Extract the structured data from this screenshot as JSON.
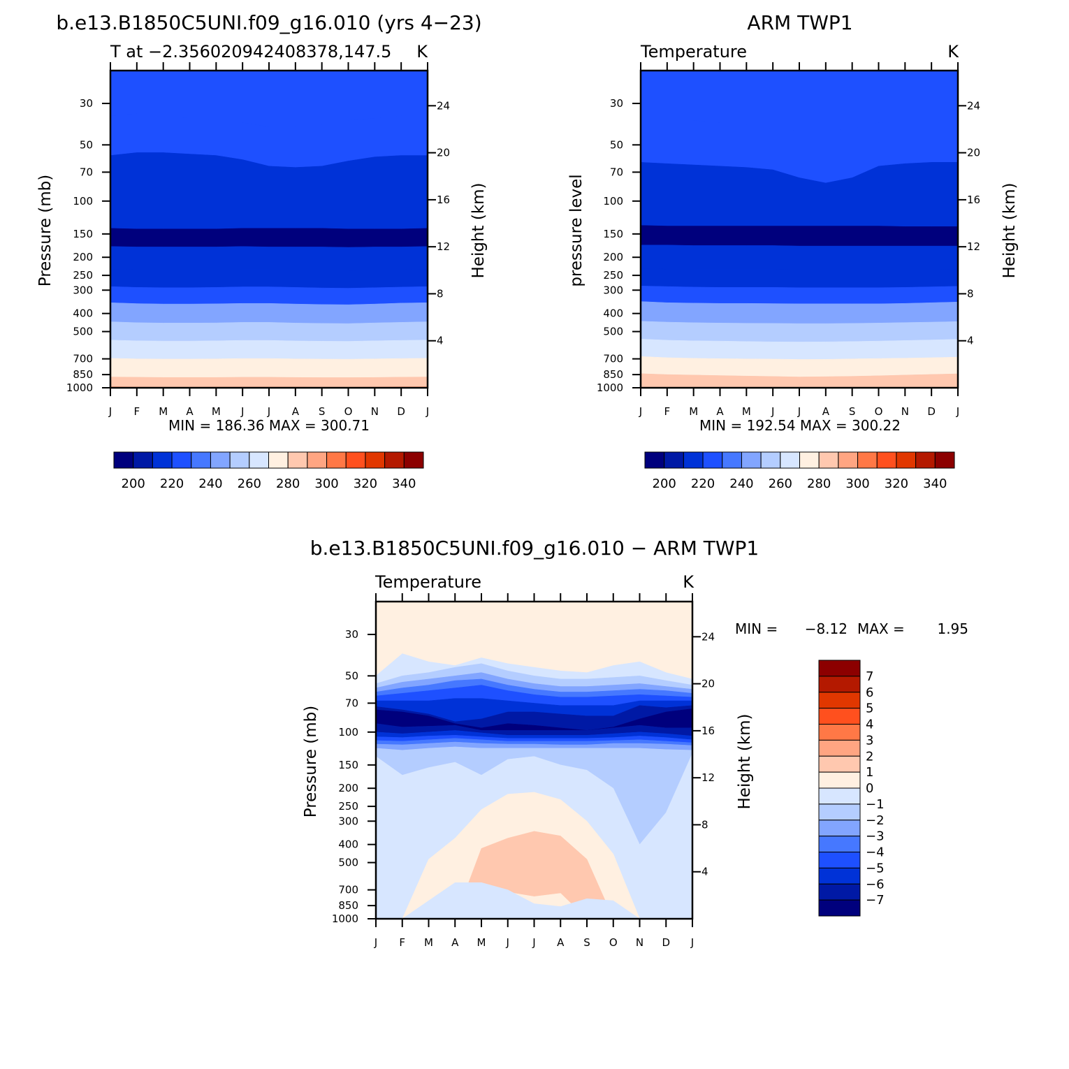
{
  "palette": [
    "#00007d",
    "#0019a5",
    "#0032d7",
    "#1e50ff",
    "#4678ff",
    "#82a5ff",
    "#b4cdff",
    "#d7e6ff",
    "#fff0e1",
    "#ffc8af",
    "#ffa582",
    "#ff7846",
    "#ff501e",
    "#e13700",
    "#b41900",
    "#8c0000"
  ],
  "chart_data": [
    {
      "type": "heatmap",
      "panel": "model",
      "title": "b.e13.B1850C5UNI.f09_g16.010 (yrs 4−23)",
      "left_label": "T at −2.356020942408378,147.5",
      "units": "K",
      "xlabel": "",
      "ylabel": "Pressure (mb)",
      "ylabel_right": "Height (km)",
      "x_ticks": [
        "J",
        "F",
        "M",
        "A",
        "M",
        "J",
        "J",
        "A",
        "S",
        "O",
        "N",
        "D",
        "J"
      ],
      "y_ticks": [
        30,
        50,
        70,
        100,
        150,
        200,
        250,
        300,
        400,
        500,
        700,
        850,
        1000
      ],
      "y_right_ticks": [
        4,
        8,
        12,
        16,
        20,
        24
      ],
      "ylim": [
        1000,
        20
      ],
      "stats": "MIN = 186.36 MAX = 300.71",
      "colorbar_labels": [
        "200",
        "220",
        "240",
        "260",
        "280",
        "300",
        "320",
        "340"
      ],
      "colorbar_levels": [
        195,
        200,
        205,
        210,
        215,
        220,
        225,
        230,
        235,
        240,
        245,
        250,
        255,
        260,
        265,
        270,
        275,
        280,
        285,
        290,
        295,
        300,
        305,
        310,
        315,
        320,
        325,
        330,
        335,
        340,
        345
      ],
      "boundaries": [
        {
          "level": 225,
          "p": [
            35,
            34,
            35,
            36,
            37,
            38,
            40,
            40,
            39,
            37,
            36,
            35,
            35
          ]
        },
        {
          "level": 215,
          "p": [
            57,
            55,
            55,
            56,
            57,
            60,
            65,
            66,
            65,
            61,
            58,
            57,
            57
          ]
        },
        {
          "level": 205,
          "p": [
            140,
            141,
            141,
            141,
            141,
            140,
            140,
            140,
            140,
            141,
            141,
            141,
            140
          ]
        },
        {
          "level": 215,
          "p": [
            175,
            176,
            176,
            176,
            176,
            175,
            176,
            176,
            176,
            177,
            176,
            176,
            175
          ]
        },
        {
          "level": 225,
          "p": [
            232,
            234,
            235,
            235,
            234,
            233,
            233,
            234,
            235,
            236,
            235,
            234,
            232
          ]
        },
        {
          "level": 235,
          "p": [
            287,
            290,
            291,
            291,
            290,
            288,
            288,
            290,
            292,
            293,
            291,
            289,
            287
          ]
        },
        {
          "level": 250,
          "p": [
            350,
            354,
            356,
            356,
            355,
            353,
            353,
            356,
            358,
            359,
            356,
            352,
            350
          ]
        },
        {
          "level": 265,
          "p": [
            443,
            448,
            450,
            450,
            449,
            446,
            446,
            450,
            452,
            453,
            449,
            446,
            443
          ]
        },
        {
          "level": 275,
          "p": [
            555,
            560,
            562,
            562,
            560,
            557,
            557,
            561,
            563,
            564,
            560,
            557,
            555
          ]
        },
        {
          "level": 285,
          "p": [
            695,
            700,
            702,
            702,
            700,
            697,
            697,
            700,
            702,
            703,
            700,
            697,
            695
          ]
        },
        {
          "level": 295,
          "p": [
            875,
            878,
            880,
            880,
            880,
            878,
            878,
            880,
            882,
            882,
            880,
            877,
            875
          ]
        },
        {
          "level": 305,
          "p": [
            985,
            990,
            992,
            992,
            990,
            989,
            989,
            990,
            992,
            993,
            990,
            986,
            985
          ]
        }
      ],
      "layers": [
        {
          "level": 222.5
        },
        {
          "level": 217.5
        },
        {
          "level": 197.5
        },
        {
          "level": 212.5
        },
        {
          "level": 217.5
        },
        {
          "level": 227.5
        },
        {
          "level": 242.5
        },
        {
          "level": 257.5
        },
        {
          "level": 267.5
        },
        {
          "level": 277.5
        },
        {
          "level": 287.5
        },
        {
          "level": 297.5
        },
        {
          "level": 302.5
        }
      ]
    },
    {
      "type": "heatmap",
      "panel": "obs",
      "title": "ARM TWP1",
      "left_label": "Temperature",
      "units": "K",
      "xlabel": "",
      "ylabel": "pressure level",
      "ylabel_right": "Height (km)",
      "x_ticks": [
        "J",
        "F",
        "M",
        "A",
        "M",
        "J",
        "J",
        "A",
        "S",
        "O",
        "N",
        "D",
        "J"
      ],
      "y_ticks": [
        30,
        50,
        70,
        100,
        150,
        200,
        250,
        300,
        400,
        500,
        700,
        850,
        1000
      ],
      "y_right_ticks": [
        4,
        8,
        12,
        16,
        20,
        24
      ],
      "ylim": [
        1000,
        20
      ],
      "stats": "MIN = 192.54 MAX = 300.22",
      "colorbar_labels": [
        "200",
        "220",
        "240",
        "260",
        "280",
        "300",
        "320",
        "340"
      ],
      "colorbar_levels": [
        195,
        200,
        205,
        210,
        215,
        220,
        225,
        230,
        235,
        240,
        245,
        250,
        255,
        260,
        265,
        270,
        275,
        280,
        285,
        290,
        295,
        300,
        305,
        310,
        315,
        320,
        325,
        330,
        335,
        340,
        345
      ],
      "boundaries": [
        {
          "level": 225,
          "p": [
            35,
            36,
            37,
            38,
            39,
            41,
            42,
            42,
            41,
            38,
            37,
            36,
            35
          ]
        },
        {
          "level": 215,
          "p": [
            62,
            63,
            64,
            65,
            66,
            68,
            75,
            80,
            75,
            65,
            63,
            62,
            62
          ]
        },
        {
          "level": 205,
          "p": [
            135,
            136,
            136,
            136,
            136,
            136,
            136,
            136,
            136,
            136,
            137,
            137,
            137
          ]
        },
        {
          "level": 215,
          "p": [
            172,
            172,
            173,
            173,
            173,
            173,
            174,
            174,
            174,
            174,
            174,
            174,
            174
          ]
        },
        {
          "level": 225,
          "p": [
            230,
            232,
            233,
            233,
            233,
            233,
            234,
            234,
            235,
            235,
            235,
            234,
            233
          ]
        },
        {
          "level": 235,
          "p": [
            285,
            287,
            289,
            290,
            290,
            290,
            291,
            291,
            291,
            291,
            290,
            288,
            286
          ]
        },
        {
          "level": 250,
          "p": [
            345,
            350,
            352,
            353,
            353,
            354,
            355,
            355,
            355,
            355,
            353,
            350,
            347
          ]
        },
        {
          "level": 265,
          "p": [
            440,
            445,
            448,
            450,
            451,
            452,
            453,
            453,
            452,
            450,
            447,
            445,
            442
          ]
        },
        {
          "level": 275,
          "p": [
            548,
            556,
            560,
            562,
            565,
            567,
            568,
            567,
            565,
            562,
            558,
            554,
            550
          ]
        },
        {
          "level": 285,
          "p": [
            680,
            690,
            695,
            698,
            700,
            702,
            705,
            704,
            700,
            697,
            694,
            690,
            685
          ]
        },
        {
          "level": 295,
          "p": [
            840,
            850,
            855,
            860,
            865,
            870,
            875,
            872,
            868,
            862,
            855,
            848,
            842
          ]
        }
      ],
      "layers": [
        {
          "level": 222.5
        },
        {
          "level": 217.5
        },
        {
          "level": 197.5
        },
        {
          "level": 212.5
        },
        {
          "level": 217.5
        },
        {
          "level": 227.5
        },
        {
          "level": 242.5
        },
        {
          "level": 257.5
        },
        {
          "level": 267.5
        },
        {
          "level": 277.5
        },
        {
          "level": 287.5
        },
        {
          "level": 292.5
        }
      ]
    },
    {
      "type": "heatmap",
      "panel": "diff",
      "title": "b.e13.B1850C5UNI.f09_g16.010 − ARM TWP1",
      "left_label": "Temperature",
      "units": "K",
      "xlabel": "",
      "ylabel": "Pressure (mb)",
      "ylabel_right": "Height (km)",
      "x_ticks": [
        "J",
        "F",
        "M",
        "A",
        "M",
        "J",
        "J",
        "A",
        "S",
        "O",
        "N",
        "D",
        "J"
      ],
      "y_ticks": [
        30,
        50,
        70,
        100,
        150,
        200,
        250,
        300,
        400,
        500,
        700,
        850,
        1000
      ],
      "y_right_ticks": [
        4,
        8,
        12,
        16,
        20,
        24
      ],
      "ylim": [
        1000,
        20
      ],
      "stats_min_label": "MIN =",
      "stats_min": "−8.12",
      "stats_max_label": "MAX =",
      "stats_max": "1.95",
      "colorbar_labels": [
        "7",
        "6",
        "5",
        "4",
        "3",
        "2",
        "1",
        "0",
        "−1",
        "−2",
        "−3",
        "−4",
        "−5",
        "−6",
        "−7"
      ],
      "colorbar_levels": [
        7.5,
        6.5,
        5.5,
        4.5,
        3.5,
        2.5,
        1.5,
        0.5,
        -0.5,
        -1.5,
        -2.5,
        -3.5,
        -4.5,
        -5.5,
        -6.5,
        -7.5
      ],
      "boundaries": [
        {
          "level": 0,
          "p": [
            20,
            20,
            30,
            30,
            30,
            32,
            22,
            22,
            22,
            30,
            20,
            30,
            22
          ]
        },
        {
          "level": -1,
          "p": [
            50,
            38,
            42,
            44,
            40,
            43,
            45,
            47,
            48,
            44,
            42,
            48,
            52
          ]
        },
        {
          "level": -2,
          "p": [
            55,
            50,
            48,
            45,
            43,
            47,
            50,
            52,
            52,
            51,
            50,
            53,
            56
          ]
        },
        {
          "level": -3,
          "p": [
            58,
            54,
            52,
            50,
            48,
            52,
            55,
            57,
            57,
            56,
            55,
            57,
            59
          ]
        },
        {
          "level": -4,
          "p": [
            61,
            58,
            56,
            53,
            52,
            56,
            59,
            61,
            61,
            60,
            59,
            60,
            62
          ]
        },
        {
          "level": -5,
          "p": [
            64,
            62,
            60,
            58,
            56,
            60,
            63,
            65,
            65,
            64,
            63,
            64,
            65
          ]
        },
        {
          "level": -6,
          "p": [
            68,
            68,
            68,
            66,
            66,
            68,
            70,
            72,
            72,
            72,
            68,
            68,
            68
          ]
        },
        {
          "level": -7,
          "p": [
            73,
            76,
            80,
            88,
            85,
            78,
            78,
            80,
            82,
            82,
            72,
            74,
            72
          ]
        },
        {
          "level": -8,
          "p": [
            76,
            78,
            82,
            90,
            95,
            90,
            92,
            95,
            98,
            94,
            85,
            78,
            75
          ]
        },
        {
          "level": -7,
          "p": [
            90,
            94,
            93,
            92,
            98,
            98,
            98,
            98,
            98,
            95,
            92,
            95,
            95
          ]
        },
        {
          "level": -6,
          "p": [
            100,
            102,
            100,
            98,
            101,
            104,
            104,
            104,
            104,
            102,
            100,
            102,
            105
          ]
        },
        {
          "level": -5,
          "p": [
            106,
            107,
            105,
            104,
            106,
            108,
            108,
            108,
            108,
            107,
            105,
            107,
            110
          ]
        },
        {
          "level": -4,
          "p": [
            111,
            112,
            110,
            108,
            110,
            112,
            112,
            112,
            112,
            111,
            110,
            112,
            114
          ]
        },
        {
          "level": -3,
          "p": [
            116,
            117,
            115,
            113,
            115,
            116,
            116,
            117,
            117,
            115,
            115,
            116,
            118
          ]
        },
        {
          "level": -2,
          "p": [
            122,
            125,
            122,
            120,
            122,
            122,
            122,
            122,
            122,
            122,
            122,
            124,
            125
          ]
        },
        {
          "level": -1,
          "p": [
            135,
            170,
            155,
            145,
            170,
            140,
            135,
            150,
            160,
            200,
            400,
            270,
            130
          ]
        },
        {
          "level": 0,
          "p": [
            1000,
            1000,
            480,
            370,
            260,
            215,
            210,
            230,
            300,
            450,
            1000,
            1000,
            1000
          ]
        },
        {
          "level": 1,
          "p": [
            1000,
            1000,
            1000,
            1000,
            420,
            370,
            340,
            360,
            480,
            1000,
            1000,
            1000,
            1000
          ]
        },
        {
          "level": 1,
          "p": [
            1000,
            1000,
            1000,
            1000,
            680,
            720,
            760,
            730,
            1000,
            1000,
            1000,
            1000,
            1000
          ]
        },
        {
          "level": 0,
          "p": [
            1000,
            1000,
            800,
            640,
            640,
            700,
            830,
            860,
            780,
            800,
            1000,
            1000,
            1000
          ]
        },
        {
          "level": -1,
          "p": [
            1000,
            1000,
            1000,
            1000,
            1000,
            1000,
            1000,
            1000,
            1000,
            1000,
            1000,
            1000,
            1000
          ]
        }
      ],
      "layers": [
        {
          "level": 0.5
        },
        {
          "level": -0.5
        },
        {
          "level": -1.5
        },
        {
          "level": -2.5
        },
        {
          "level": -3.5
        },
        {
          "level": -4.5
        },
        {
          "level": -5.5
        },
        {
          "level": -6.5
        },
        {
          "level": -7.5
        },
        {
          "level": -6.5
        },
        {
          "level": -5.5
        },
        {
          "level": -4.5
        },
        {
          "level": -3.5
        },
        {
          "level": -2.5
        },
        {
          "level": -1.5
        },
        {
          "level": -0.5
        },
        {
          "level": 0.5
        },
        {
          "level": 1.5
        },
        {
          "level": 0.5
        },
        {
          "level": -0.5
        }
      ]
    }
  ]
}
